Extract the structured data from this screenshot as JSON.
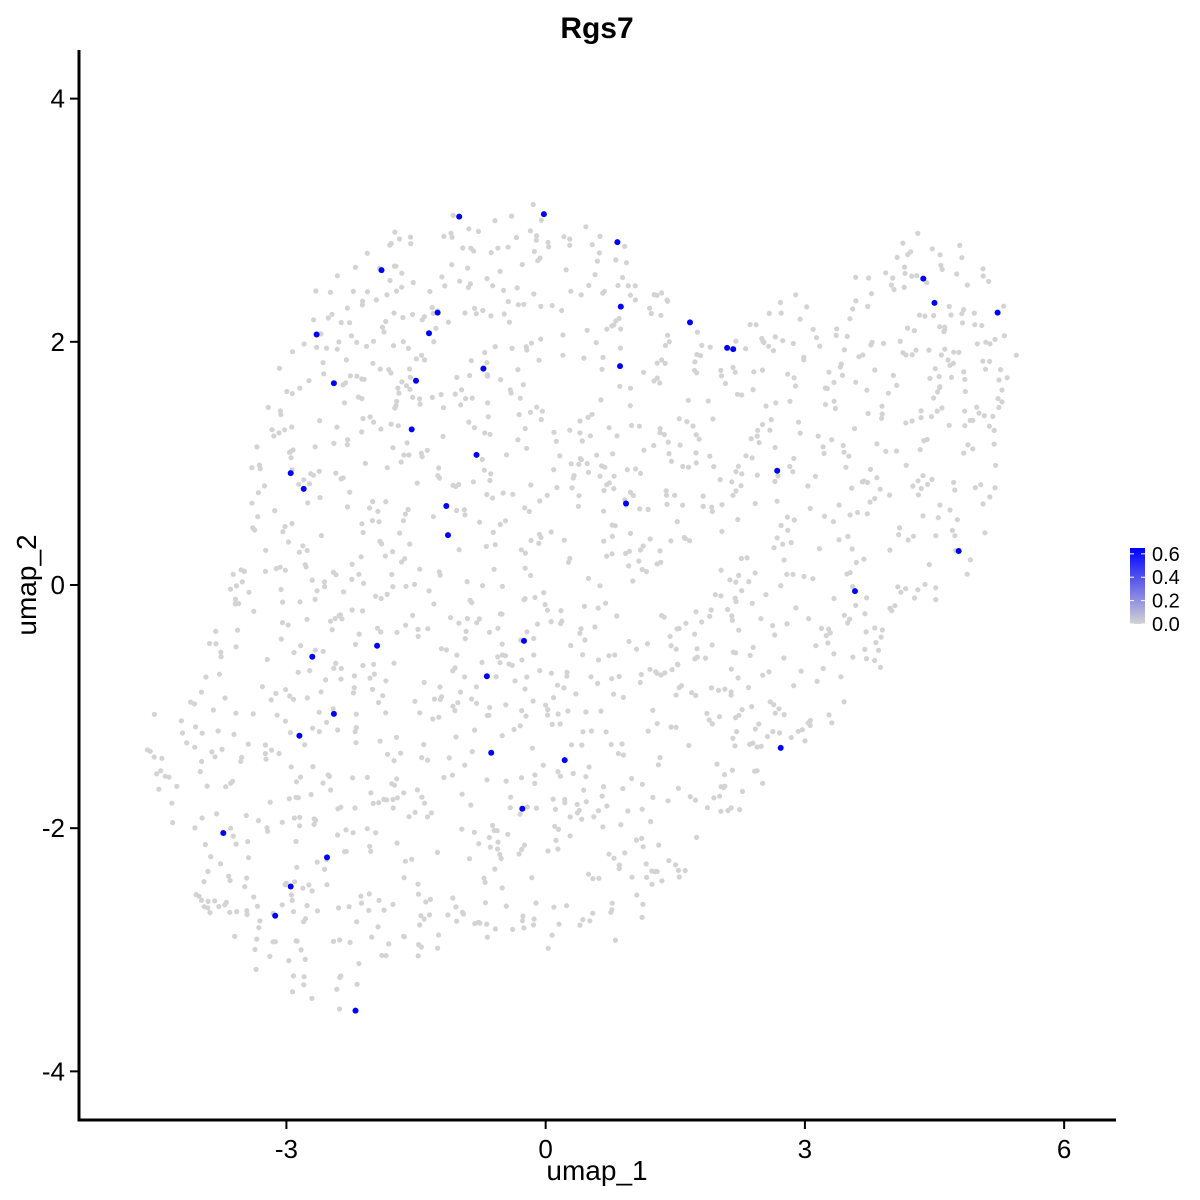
{
  "chart_data": {
    "type": "scatter",
    "title": "Rgs7",
    "xlabel": "umap_1",
    "ylabel": "umap_2",
    "xlim": [
      -5.4,
      6.6
    ],
    "ylim": [
      -4.4,
      4.4
    ],
    "xticks": [
      -3,
      0,
      3,
      6
    ],
    "yticks": [
      -4,
      -2,
      0,
      2,
      4
    ],
    "grid": false,
    "legend": {
      "placement": "right",
      "type": "colorbar",
      "ticks": [
        "0.6",
        "0.4",
        "0.2",
        "0.0"
      ],
      "range": [
        0,
        0.65
      ],
      "low_color": "#d3d3d3",
      "high_color": "#0000ff"
    },
    "background_color": "#d3d3d3",
    "expressed_color": "#0000ff",
    "cloud_region": [
      [
        -4.7,
        -1.2
      ],
      [
        -4.3,
        -2.2
      ],
      [
        -3.9,
        -2.9
      ],
      [
        -3.2,
        -3.3
      ],
      [
        -2.4,
        -3.5
      ],
      [
        -1.5,
        -3.1
      ],
      [
        -0.5,
        -3.0
      ],
      [
        0.5,
        -3.0
      ],
      [
        1.0,
        -2.9
      ],
      [
        1.7,
        -2.3
      ],
      [
        2.5,
        -1.7
      ],
      [
        3.3,
        -1.2
      ],
      [
        4.0,
        -0.6
      ],
      [
        4.7,
        -0.1
      ],
      [
        5.1,
        0.3
      ],
      [
        5.4,
        1.2
      ],
      [
        5.5,
        2.1
      ],
      [
        5.3,
        2.5
      ],
      [
        4.8,
        2.8
      ],
      [
        4.3,
        3.0
      ],
      [
        3.6,
        2.7
      ],
      [
        3.2,
        2.5
      ],
      [
        2.5,
        2.3
      ],
      [
        2.0,
        2.0
      ],
      [
        1.5,
        2.3
      ],
      [
        1.0,
        2.8
      ],
      [
        0.0,
        3.15
      ],
      [
        -0.8,
        3.1
      ],
      [
        -1.8,
        2.9
      ],
      [
        -2.7,
        2.4
      ],
      [
        -3.2,
        1.6
      ],
      [
        -3.5,
        0.7
      ],
      [
        -3.7,
        -0.2
      ],
      [
        -4.1,
        -0.7
      ]
    ],
    "cloud_point_count": 1600,
    "expressed_points": [
      {
        "x": -1.0,
        "y": 3.03
      },
      {
        "x": -0.02,
        "y": 3.05
      },
      {
        "x": 0.83,
        "y": 2.82
      },
      {
        "x": -1.9,
        "y": 2.59
      },
      {
        "x": -1.25,
        "y": 2.24
      },
      {
        "x": 0.87,
        "y": 2.29
      },
      {
        "x": 1.67,
        "y": 2.16
      },
      {
        "x": -2.65,
        "y": 2.06
      },
      {
        "x": -1.35,
        "y": 2.07
      },
      {
        "x": 2.1,
        "y": 1.95
      },
      {
        "x": 2.17,
        "y": 1.94
      },
      {
        "x": -0.72,
        "y": 1.78
      },
      {
        "x": 0.86,
        "y": 1.8
      },
      {
        "x": -2.45,
        "y": 1.66
      },
      {
        "x": -1.5,
        "y": 1.68
      },
      {
        "x": -1.55,
        "y": 1.28
      },
      {
        "x": -0.8,
        "y": 1.07
      },
      {
        "x": 2.68,
        "y": 0.94
      },
      {
        "x": -2.95,
        "y": 0.92
      },
      {
        "x": -2.8,
        "y": 0.79
      },
      {
        "x": 0.93,
        "y": 0.67
      },
      {
        "x": -1.15,
        "y": 0.65
      },
      {
        "x": -1.13,
        "y": 0.41
      },
      {
        "x": 4.78,
        "y": 0.28
      },
      {
        "x": 3.58,
        "y": -0.05
      },
      {
        "x": -0.25,
        "y": -0.46
      },
      {
        "x": -1.95,
        "y": -0.5
      },
      {
        "x": -2.7,
        "y": -0.59
      },
      {
        "x": -0.68,
        "y": -0.75
      },
      {
        "x": -2.45,
        "y": -1.06
      },
      {
        "x": -2.85,
        "y": -1.24
      },
      {
        "x": 2.72,
        "y": -1.34
      },
      {
        "x": -0.63,
        "y": -1.38
      },
      {
        "x": 0.22,
        "y": -1.44
      },
      {
        "x": -0.27,
        "y": -1.84
      },
      {
        "x": -3.73,
        "y": -2.04
      },
      {
        "x": -2.53,
        "y": -2.24
      },
      {
        "x": -2.95,
        "y": -2.48
      },
      {
        "x": -3.13,
        "y": -2.72
      },
      {
        "x": -2.2,
        "y": -3.5
      },
      {
        "x": 4.37,
        "y": 2.52
      },
      {
        "x": 4.5,
        "y": 2.32
      },
      {
        "x": 5.23,
        "y": 2.24
      }
    ]
  }
}
